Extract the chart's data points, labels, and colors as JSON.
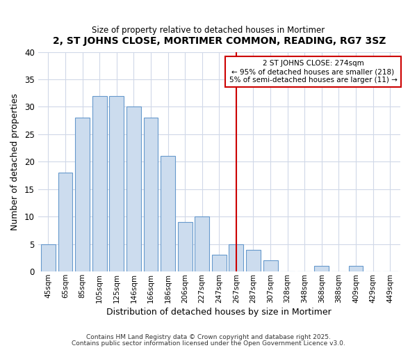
{
  "title": "2, ST JOHNS CLOSE, MORTIMER COMMON, READING, RG7 3SZ",
  "subtitle": "Size of property relative to detached houses in Mortimer",
  "xlabel": "Distribution of detached houses by size in Mortimer",
  "ylabel": "Number of detached properties",
  "bar_labels": [
    "45sqm",
    "65sqm",
    "85sqm",
    "105sqm",
    "125sqm",
    "146sqm",
    "166sqm",
    "186sqm",
    "206sqm",
    "227sqm",
    "247sqm",
    "267sqm",
    "287sqm",
    "307sqm",
    "328sqm",
    "348sqm",
    "368sqm",
    "388sqm",
    "409sqm",
    "429sqm",
    "449sqm"
  ],
  "bar_values": [
    5,
    18,
    28,
    32,
    32,
    30,
    28,
    21,
    9,
    10,
    3,
    5,
    4,
    2,
    0,
    0,
    1,
    0,
    1,
    0,
    0
  ],
  "bar_color": "#ccdcee",
  "bar_edge_color": "#6699cc",
  "property_line_x": 11.0,
  "property_line_label": "2 ST JOHNS CLOSE: 274sqm",
  "annotation_line1": "← 95% of detached houses are smaller (218)",
  "annotation_line2": "5% of semi-detached houses are larger (11) →",
  "annotation_box_facecolor": "#ffffff",
  "annotation_box_edgecolor": "#cc0000",
  "line_color": "#cc0000",
  "ylim": [
    0,
    40
  ],
  "yticks": [
    0,
    5,
    10,
    15,
    20,
    25,
    30,
    35,
    40
  ],
  "plot_bg_color": "#ffffff",
  "fig_bg_color": "#ffffff",
  "grid_color": "#d0d8e8",
  "footer_line1": "Contains HM Land Registry data © Crown copyright and database right 2025.",
  "footer_line2": "Contains public sector information licensed under the Open Government Licence v3.0."
}
